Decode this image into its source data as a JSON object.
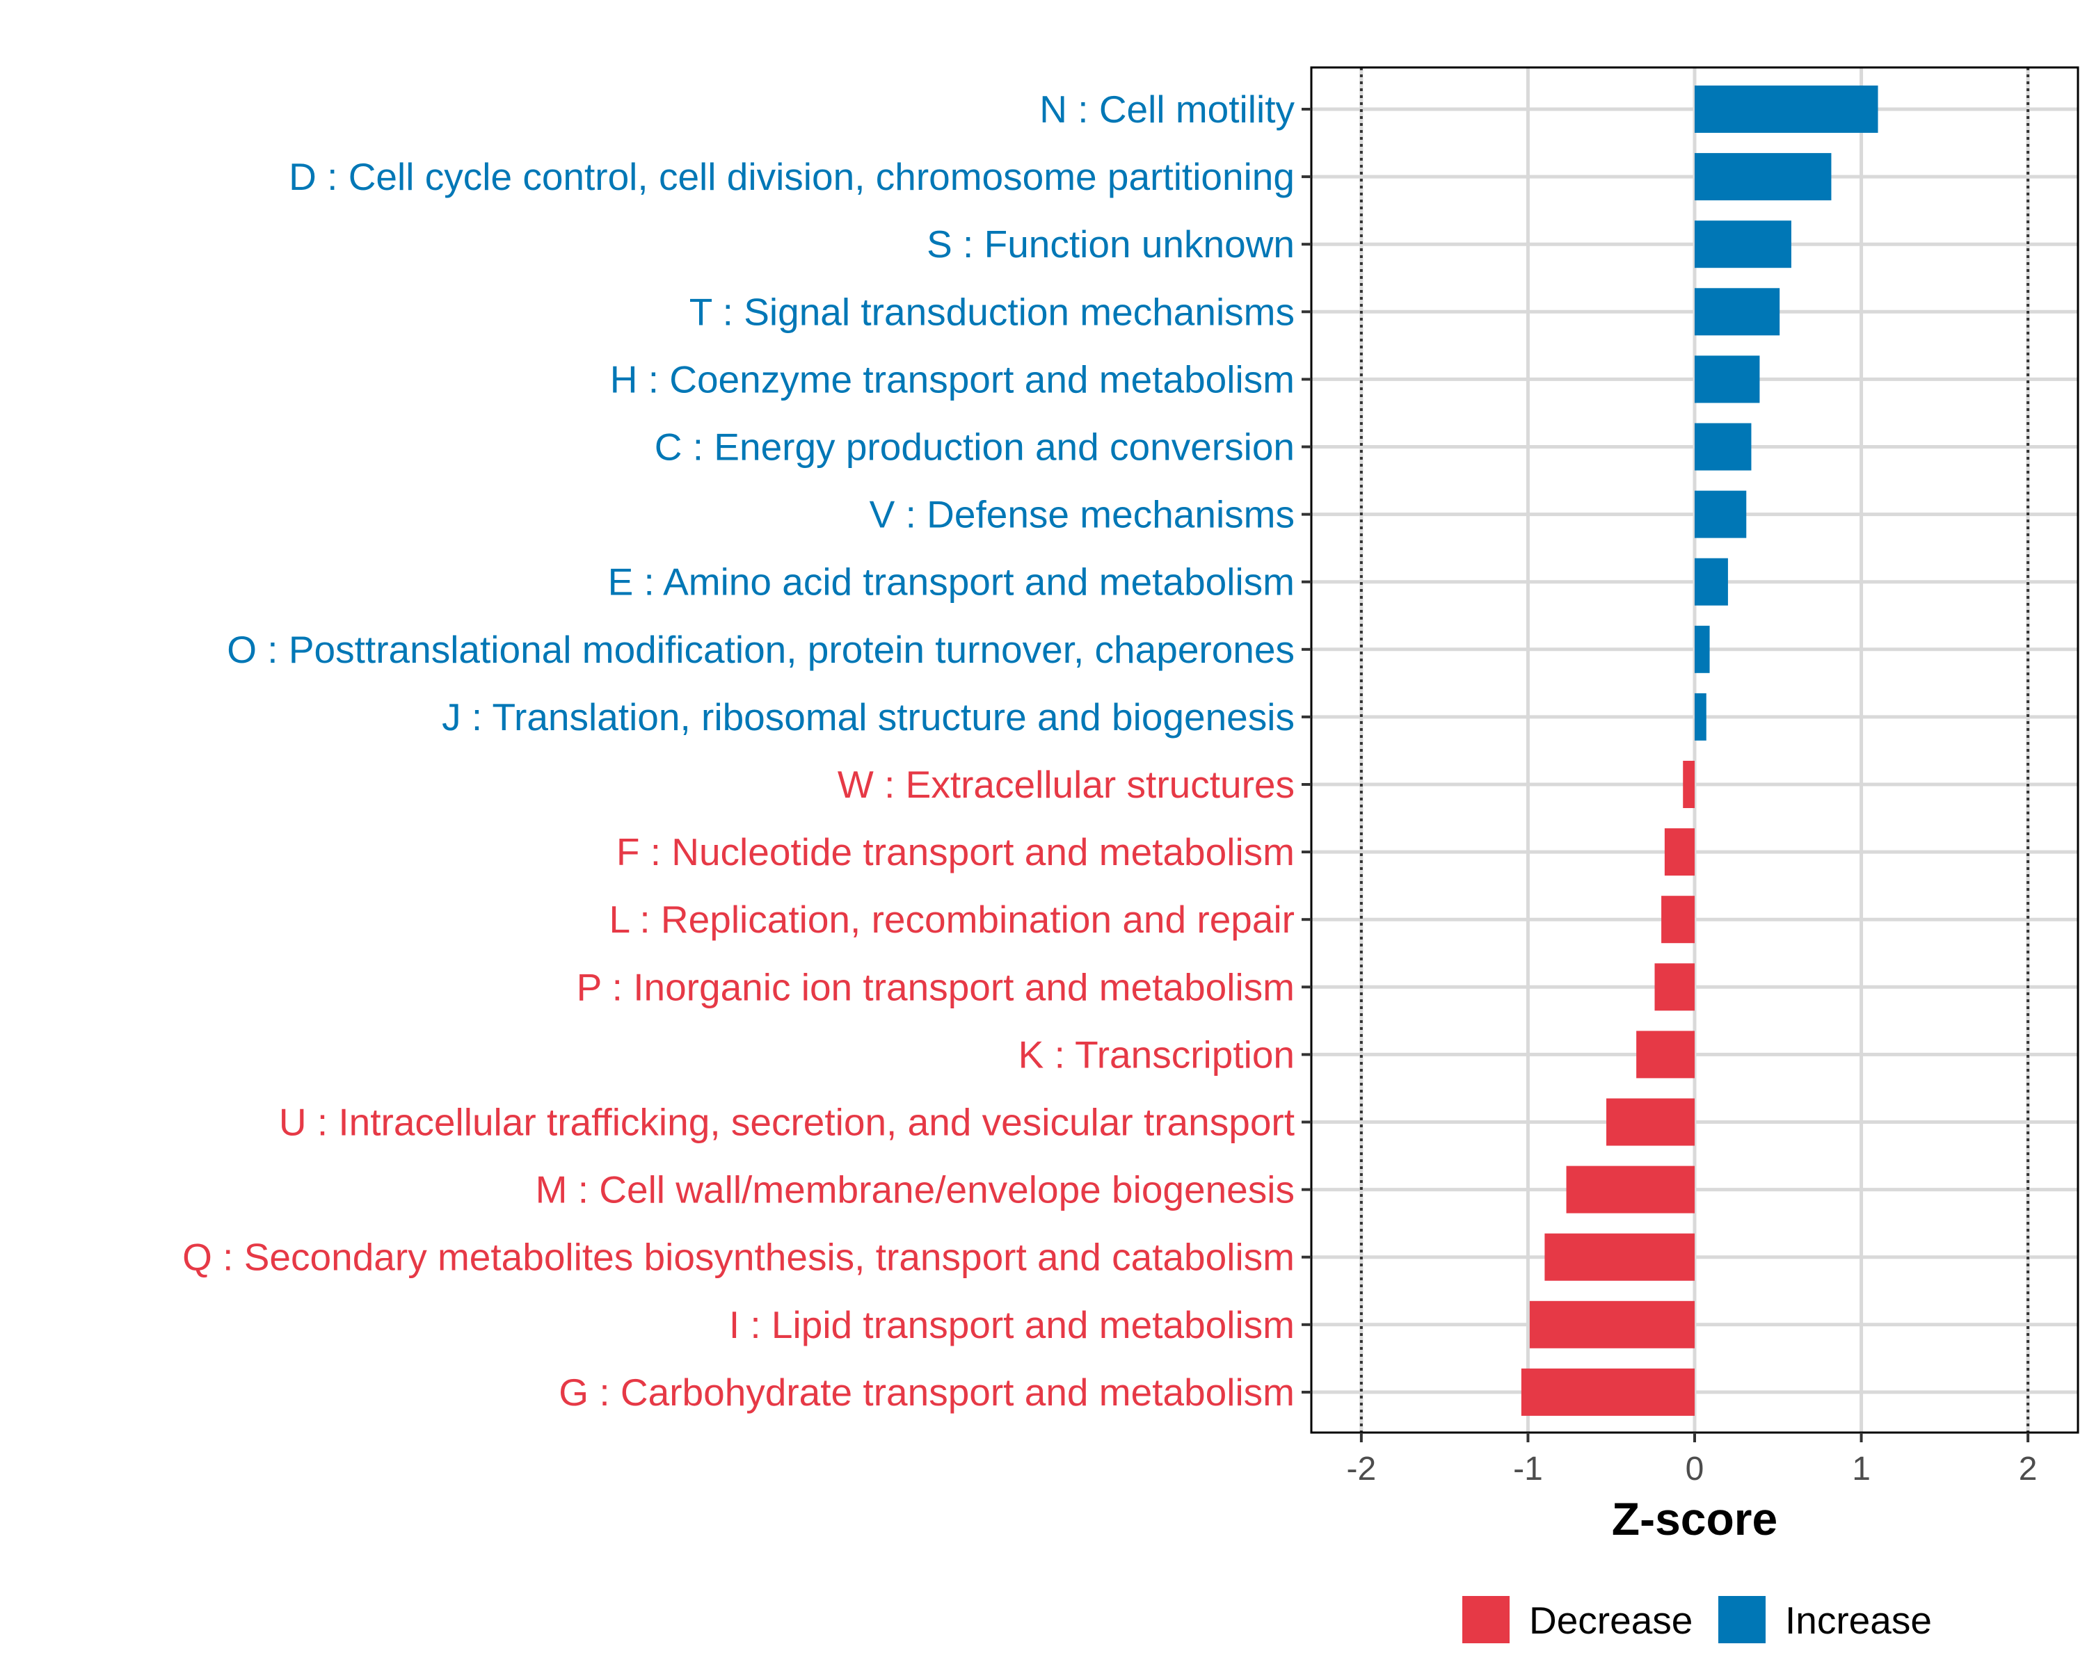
{
  "chart_data": {
    "type": "bar",
    "orientation": "horizontal",
    "xlabel": "Z-score",
    "ylabel": "",
    "title": "",
    "xlim": [
      -2.3,
      2.3
    ],
    "xticks": [
      -2,
      -1,
      0,
      1,
      2
    ],
    "xtick_labels": [
      "-2",
      "-1",
      "0",
      "1",
      "2"
    ],
    "reference_lines": [
      -2,
      2
    ],
    "grid": true,
    "legend_position": "bottom",
    "categories": [
      "N : Cell motility",
      "D : Cell cycle control, cell division, chromosome partitioning",
      "S : Function unknown",
      "T : Signal transduction mechanisms",
      "H : Coenzyme transport and metabolism",
      "C : Energy production and conversion",
      "V : Defense mechanisms",
      "E : Amino acid transport and metabolism",
      "O : Posttranslational modification, protein turnover, chaperones",
      "J : Translation, ribosomal structure and biogenesis",
      "W : Extracellular structures",
      "F : Nucleotide transport and metabolism",
      "L : Replication, recombination and repair",
      "P : Inorganic ion transport and metabolism",
      "K : Transcription",
      "U : Intracellular trafficking, secretion, and vesicular transport",
      "M : Cell wall/membrane/envelope biogenesis",
      "Q : Secondary metabolites biosynthesis, transport and catabolism",
      "I : Lipid transport and metabolism",
      "G : Carbohydrate transport and metabolism"
    ],
    "values": [
      1.1,
      0.82,
      0.58,
      0.51,
      0.39,
      0.34,
      0.31,
      0.2,
      0.09,
      0.07,
      -0.07,
      -0.18,
      -0.2,
      -0.24,
      -0.35,
      -0.53,
      -0.77,
      -0.9,
      -0.99,
      -1.04
    ],
    "groups": [
      "Increase",
      "Increase",
      "Increase",
      "Increase",
      "Increase",
      "Increase",
      "Increase",
      "Increase",
      "Increase",
      "Increase",
      "Decrease",
      "Decrease",
      "Decrease",
      "Decrease",
      "Decrease",
      "Decrease",
      "Decrease",
      "Decrease",
      "Decrease",
      "Decrease"
    ],
    "legend": [
      {
        "name": "Decrease",
        "color": "#E63946"
      },
      {
        "name": "Increase",
        "color": "#0077B6"
      }
    ]
  },
  "colors": {
    "increase": "#0077B6",
    "decrease": "#E63946",
    "grid": "#d9d9d9",
    "panel_border": "#000000",
    "ref_line": "#333333"
  }
}
